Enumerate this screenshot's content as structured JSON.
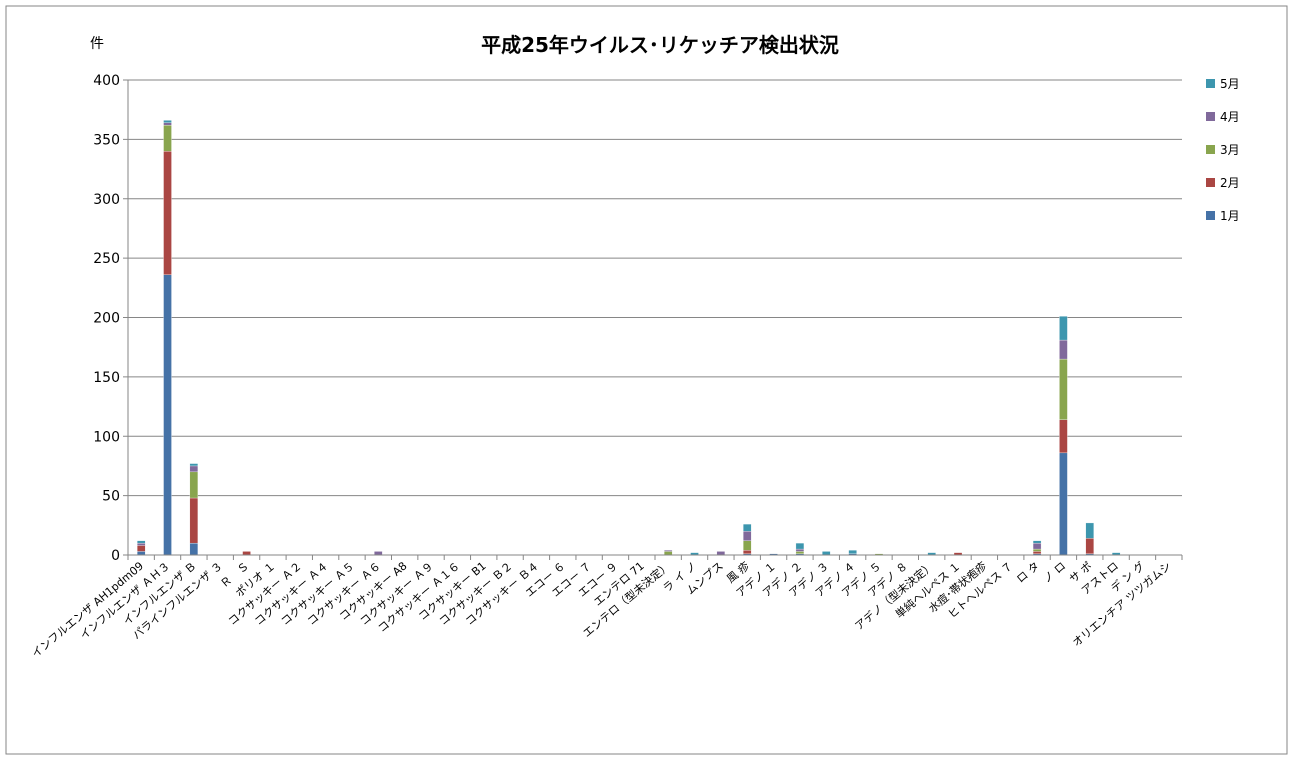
{
  "chart_data": {
    "type": "bar",
    "stacked": true,
    "title": "平成25年ウイルス･リケッチア検出状況",
    "ylabel": "件",
    "xlabel": "",
    "ylim": [
      0,
      400
    ],
    "yticks": [
      0,
      50,
      100,
      150,
      200,
      250,
      300,
      350,
      400
    ],
    "grid": true,
    "legend_position": "right",
    "categories": [
      "インフルエンザ AH1pdm09",
      "インフルエンザ ＡＨ３",
      "インフルエンザ Ｂ",
      "パラインフルエンザ ３",
      "Ｒ　Ｓ",
      "ポリオ １",
      "コクサッキー Ａ２",
      "コクサッキー Ａ４",
      "コクサッキー Ａ５",
      "コクサッキー Ａ６",
      "コクサッキー A8",
      "コクサッキー Ａ９",
      "コクサッキー Ａ１６",
      "コクサッキー B1",
      "コクサッキー Ｂ２",
      "コクサッキー Ｂ４",
      "エコー ６",
      "エコー ７",
      "エコー ９",
      "エンテロ 71",
      "エンテロ（型未決定）",
      "ラ イ ノ",
      "ムンプス",
      "風 疹",
      "アデノ １",
      "アデノ ２",
      "アデノ ３",
      "アデノ ４",
      "アデノ ５",
      "アデノ ８",
      "アデノ（型未決定）",
      "単純ヘルペス １",
      "水痘･帯状疱疹",
      "ヒトヘルペス ７",
      "ロ タ",
      "ノ ロ",
      "サ ポ",
      "アストロ",
      "デ ン グ",
      "オリエンチア ツツガムシ"
    ],
    "series": [
      {
        "name": "1月",
        "color": "#4572A7",
        "values": [
          3,
          236,
          10,
          0,
          0,
          0,
          0,
          0,
          0,
          0,
          0,
          0,
          0,
          0,
          0,
          0,
          0,
          0,
          0,
          0,
          0,
          0,
          0,
          1,
          1,
          1,
          0,
          1,
          0,
          0,
          0,
          0,
          0,
          0,
          1,
          86,
          1,
          0,
          0,
          0
        ]
      },
      {
        "name": "2月",
        "color": "#AA4643",
        "values": [
          5,
          104,
          38,
          0,
          3,
          0,
          0,
          0,
          0,
          0,
          0,
          0,
          0,
          0,
          0,
          0,
          0,
          0,
          0,
          0,
          0,
          0,
          0,
          3,
          0,
          0,
          0,
          0,
          0,
          0,
          0,
          2,
          0,
          0,
          2,
          28,
          13,
          0,
          0,
          0
        ]
      },
      {
        "name": "3月",
        "color": "#89A54E",
        "values": [
          0,
          22,
          22,
          0,
          0,
          0,
          0,
          0,
          0,
          0,
          0,
          0,
          0,
          0,
          0,
          0,
          0,
          0,
          0,
          0,
          3,
          0,
          0,
          8,
          0,
          2,
          0,
          0,
          1,
          0,
          0,
          0,
          0,
          0,
          2,
          51,
          0,
          0,
          0,
          0
        ]
      },
      {
        "name": "4月",
        "color": "#80699B",
        "values": [
          2,
          2,
          5,
          0,
          0,
          0,
          0,
          0,
          0,
          3,
          0,
          0,
          0,
          0,
          0,
          0,
          0,
          0,
          0,
          0,
          1,
          0,
          3,
          8,
          0,
          2,
          0,
          0,
          0,
          0,
          0,
          0,
          0,
          0,
          5,
          16,
          0,
          0,
          0,
          0
        ]
      },
      {
        "name": "5月",
        "color": "#3D96AE",
        "values": [
          2,
          2,
          2,
          0,
          0,
          0,
          0,
          0,
          0,
          0,
          0,
          0,
          0,
          0,
          0,
          0,
          0,
          0,
          0,
          0,
          0,
          2,
          0,
          6,
          0,
          5,
          3,
          3,
          0,
          0,
          2,
          0,
          0,
          0,
          2,
          20,
          13,
          2,
          0,
          0
        ]
      }
    ]
  }
}
